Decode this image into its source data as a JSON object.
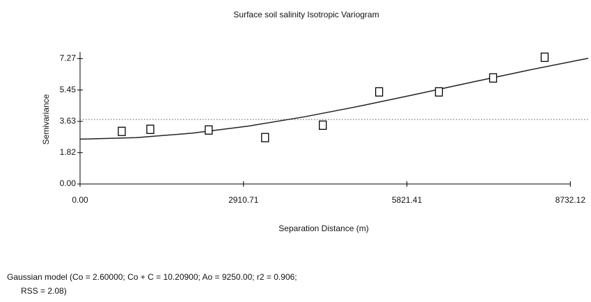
{
  "chart_data": {
    "type": "scatter",
    "title": "Surface soil salinity Isotropic Variogram",
    "xlabel": "Separation Distance (m)",
    "ylabel": "Semivariance",
    "x": [
      743,
      1251,
      2291,
      3295,
      4323,
      5326,
      6391,
      7357,
      8274
    ],
    "values": [
      3.05,
      3.17,
      3.13,
      2.69,
      3.41,
      5.34,
      5.34,
      6.15,
      7.35
    ],
    "color": "#000000",
    "fit": {
      "x": [
        0,
        1000,
        2000,
        3000,
        4000,
        5000,
        6000,
        7000,
        8000,
        9000,
        9050
      ],
      "values": [
        2.6,
        2.688,
        2.948,
        3.359,
        3.898,
        4.528,
        5.214,
        5.918,
        6.608,
        7.257,
        7.288
      ],
      "color": "#222222"
    },
    "reference_line": 3.74,
    "xlim": [
      0,
      9050
    ],
    "ylim": [
      0,
      7.65
    ],
    "xticks": [
      {
        "value": 0,
        "label": "0.00"
      },
      2910.71,
      5821.41,
      8732.12
    ],
    "yticks": [
      {
        "value": 0,
        "label": "0.00"
      },
      1.82,
      3.63,
      5.45,
      7.27
    ],
    "footnote": [
      "Gaussian model (Co = 2.60000; Co + C = 10.20900; Ao = 9250.00; r2 = 0.906;",
      "RSS = 2.08)"
    ]
  }
}
